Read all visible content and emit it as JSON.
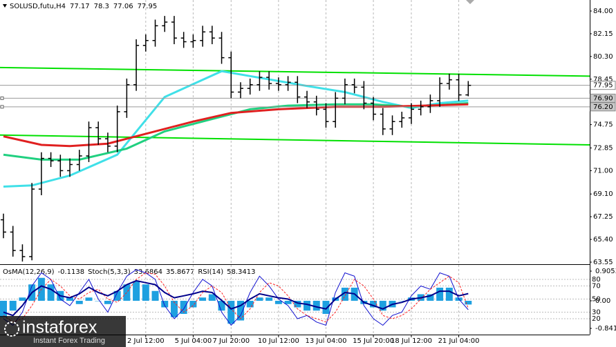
{
  "chart_data": [
    {
      "type": "ohlc",
      "title": "SOLUSD,futu,H4",
      "color": "#000000",
      "categories": [
        null,
        null,
        null,
        null,
        null,
        null,
        null,
        null,
        null,
        null,
        null,
        null,
        null,
        null,
        null,
        "2 Jul 12:00",
        null,
        null,
        null,
        null,
        "5 Jul 04:00",
        null,
        null,
        null,
        "7 Jul 20:00",
        null,
        null,
        null,
        null,
        "10 Jul 12:00",
        null,
        null,
        null,
        null,
        "13 Jul 04:00",
        null,
        null,
        null,
        null,
        "15 Jul 20:00",
        null,
        null,
        null,
        "18 Jul 12:00",
        null,
        null,
        null,
        null,
        "21 Jul 04:00",
        null
      ],
      "open": [
        67.0,
        66.0,
        64.5,
        64.0,
        69.5,
        72.0,
        71.8,
        71.0,
        71.5,
        72.2,
        74.5,
        73.6,
        73.0,
        75.8,
        78.0,
        81.2,
        81.6,
        82.8,
        83.1,
        81.8,
        81.5,
        81.6,
        82.3,
        81.8,
        80.2,
        77.4,
        77.7,
        78.0,
        78.6,
        78.1,
        78.0,
        78.2,
        77.0,
        76.6,
        76.0,
        75.0,
        76.9,
        78.0,
        77.8,
        76.5,
        75.6,
        74.4,
        75.0,
        75.3,
        76.0,
        76.2,
        76.7,
        78.1,
        78.4,
        77.17
      ],
      "high": [
        67.5,
        66.5,
        65.0,
        70.0,
        72.5,
        72.5,
        72.3,
        72.0,
        72.7,
        75.0,
        75.0,
        74.1,
        76.3,
        78.5,
        81.7,
        82.1,
        83.3,
        83.6,
        83.6,
        82.3,
        82.1,
        82.8,
        82.8,
        82.3,
        80.7,
        78.2,
        78.5,
        79.1,
        79.1,
        78.6,
        78.7,
        78.7,
        77.5,
        77.1,
        76.5,
        77.4,
        78.5,
        78.5,
        78.3,
        77.0,
        76.1,
        75.5,
        75.8,
        76.5,
        76.7,
        77.2,
        78.6,
        78.9,
        78.9,
        78.3
      ],
      "low": [
        65.5,
        64.0,
        63.6,
        63.7,
        69.0,
        71.3,
        70.5,
        70.5,
        71.0,
        71.7,
        73.1,
        72.5,
        72.5,
        75.3,
        77.5,
        80.7,
        81.1,
        82.3,
        81.3,
        81.0,
        81.0,
        81.1,
        81.3,
        79.7,
        76.9,
        76.9,
        77.2,
        77.5,
        77.6,
        77.5,
        77.5,
        76.5,
        76.1,
        75.5,
        74.5,
        74.5,
        76.4,
        77.3,
        76.0,
        75.1,
        73.9,
        73.9,
        74.5,
        74.8,
        75.5,
        75.7,
        76.2,
        77.6,
        76.67,
        77.06
      ],
      "close": [
        66.0,
        64.5,
        64.0,
        69.5,
        72.0,
        71.8,
        71.0,
        71.5,
        72.2,
        74.5,
        73.6,
        73.0,
        75.8,
        78.0,
        81.2,
        81.6,
        82.8,
        83.1,
        81.8,
        81.5,
        81.6,
        82.3,
        81.8,
        80.2,
        77.4,
        77.7,
        78.0,
        78.6,
        78.1,
        78.0,
        78.2,
        77.0,
        76.6,
        76.0,
        75.0,
        76.9,
        78.0,
        77.8,
        76.5,
        75.6,
        74.4,
        75.0,
        75.3,
        76.0,
        76.2,
        76.7,
        78.1,
        78.4,
        77.17,
        77.95
      ],
      "moving_averages": [
        {
          "color": "#40e0e8",
          "x": [
            0,
            3,
            7,
            12,
            17,
            23,
            26,
            32,
            36,
            40,
            43,
            46,
            49
          ],
          "values": [
            69.7,
            69.8,
            70.6,
            72.3,
            77.0,
            79.1,
            78.7,
            77.9,
            77.4,
            76.6,
            76.1,
            76.5,
            76.7
          ]
        },
        {
          "color": "#20d080",
          "x": [
            0,
            4,
            8,
            13,
            17,
            22,
            26,
            30,
            35,
            39,
            43,
            49
          ],
          "values": [
            72.3,
            71.9,
            71.9,
            72.8,
            74.2,
            75.2,
            76.0,
            76.3,
            76.4,
            76.4,
            76.2,
            76.5
          ]
        },
        {
          "color": "#e02020",
          "x": [
            0,
            4,
            7,
            11,
            16,
            20,
            24,
            29,
            35,
            40,
            49
          ],
          "values": [
            73.8,
            73.1,
            73.0,
            73.2,
            74.2,
            75.0,
            75.7,
            76.0,
            76.2,
            76.2,
            76.4
          ]
        }
      ],
      "trend_lines": [
        {
          "color": "#00e000",
          "values": [
            79.4,
            78.7
          ]
        },
        {
          "color": "#00e000",
          "values": [
            73.9,
            73.1
          ]
        }
      ],
      "levels": [
        77.95,
        {
          "value": 76.9,
          "label": "76.90"
        },
        {
          "value": 76.2,
          "label": "76.20"
        }
      ],
      "ylim": [
        63.55,
        84
      ],
      "yticks": [
        {
          "value": 84,
          "label": "84.00"
        },
        82.15,
        {
          "value": 80.3,
          "label": "80.30"
        },
        78.45,
        74.75,
        72.85,
        {
          "value": 71,
          "label": "71.00"
        },
        {
          "value": 69.1,
          "label": "69.10"
        },
        67.25,
        {
          "value": 65.4,
          "label": "65.40"
        },
        63.55
      ],
      "grid": true
    },
    {
      "type": "oscillator",
      "osma": {
        "name": "OsMA(12,26,9)",
        "color": "#1ea0e0",
        "values": [
          -0.5,
          -0.3,
          0.1,
          0.5,
          0.7,
          0.5,
          0.3,
          0.1,
          -0.1,
          0.1,
          0.0,
          -0.1,
          0.3,
          0.5,
          0.6,
          0.5,
          0.3,
          -0.2,
          -0.5,
          -0.4,
          -0.2,
          0.1,
          0.2,
          -0.3,
          -0.7,
          -0.6,
          -0.2,
          0.1,
          0.1,
          -0.1,
          -0.1,
          -0.2,
          -0.3,
          -0.3,
          -0.4,
          0.1,
          0.4,
          0.4,
          -0.1,
          -0.2,
          -0.3,
          -0.2,
          0.0,
          0.1,
          0.2,
          0.2,
          0.4,
          0.4,
          0.1,
          -0.1138
        ]
      },
      "stoch": {
        "name": "Stoch(5,3,3)",
        "series": [
          {
            "color": "#1010d0",
            "values": [
              20,
              10,
              30,
              70,
              90,
              80,
              50,
              40,
              60,
              80,
              50,
              30,
              60,
              85,
              95,
              90,
              80,
              40,
              20,
              35,
              60,
              80,
              70,
              30,
              10,
              25,
              60,
              85,
              70,
              50,
              40,
              20,
              25,
              15,
              10,
              60,
              90,
              85,
              40,
              20,
              10,
              25,
              30,
              55,
              70,
              65,
              90,
              85,
              50,
              33.6864
            ]
          },
          {
            "color": "#ff2020",
            "values": [
              25,
              15,
              20,
              40,
              65,
              80,
              70,
              55,
              50,
              60,
              65,
              50,
              45,
              60,
              80,
              90,
              88,
              70,
              45,
              30,
              40,
              60,
              70,
              60,
              35,
              20,
              35,
              60,
              75,
              70,
              55,
              35,
              25,
              20,
              15,
              30,
              55,
              80,
              70,
              50,
              25,
              20,
              25,
              35,
              50,
              65,
              75,
              85,
              75,
              35.8677
            ]
          }
        ]
      },
      "rsi": {
        "name": "RSI(14)",
        "color": "#00008b",
        "values": [
          30,
          25,
          40,
          60,
          70,
          65,
          55,
          52,
          58,
          68,
          60,
          55,
          62,
          72,
          78,
          75,
          72,
          60,
          52,
          55,
          58,
          62,
          60,
          48,
          35,
          40,
          50,
          58,
          55,
          52,
          50,
          44,
          42,
          38,
          35,
          50,
          60,
          58,
          45,
          40,
          35,
          42,
          45,
          50,
          52,
          55,
          62,
          62,
          55,
          58.3413
        ]
      },
      "ylim": [
        -0.8412,
        0.9053
      ],
      "yticks": [
        0.9053,
        {
          "value": 0,
          "label": "0.00"
        },
        -0.8412
      ],
      "y2lim": [
        0,
        100
      ],
      "y2ticks": [
        80,
        70,
        50,
        30,
        20
      ]
    }
  ],
  "watermark": {
    "brand": "instaforex",
    "tagline": "Instant Forex Trading"
  }
}
